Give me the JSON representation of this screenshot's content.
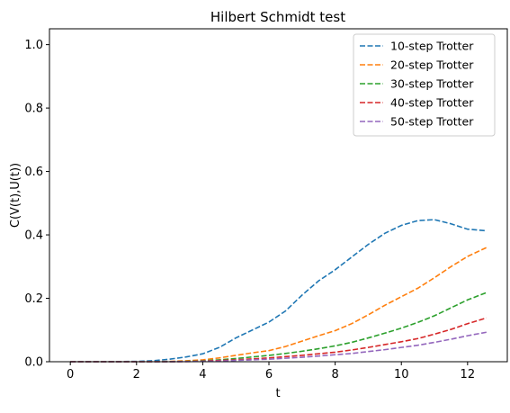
{
  "chart_data": {
    "type": "line",
    "title": "Hilbert Schmidt test",
    "xlabel": "t",
    "ylabel": "C(V(t),U(t))",
    "xlim": [
      -0.63,
      13.2
    ],
    "ylim": [
      0,
      1.05
    ],
    "xticks": [
      0,
      2,
      4,
      6,
      8,
      10,
      12
    ],
    "yticks": [
      0.0,
      0.2,
      0.4,
      0.6,
      0.8,
      1.0
    ],
    "xtick_labels": [
      "0",
      "2",
      "4",
      "6",
      "8",
      "10",
      "12"
    ],
    "ytick_labels": [
      "0.0",
      "0.2",
      "0.4",
      "0.6",
      "0.8",
      "1.0"
    ],
    "line_style": "dashed",
    "legend_position": "top-right",
    "grid": false,
    "x": [
      0,
      1,
      2,
      2.5,
      3,
      3.5,
      4,
      4.5,
      5,
      5.5,
      6,
      6.5,
      7,
      7.5,
      8,
      8.5,
      9,
      9.5,
      10,
      10.5,
      11,
      11.5,
      12,
      12.57
    ],
    "series": [
      {
        "name": "10-step Trotter",
        "color": "#1f77b4",
        "values": [
          0,
          0,
          0.001,
          0.003,
          0.008,
          0.015,
          0.025,
          0.045,
          0.075,
          0.1,
          0.125,
          0.16,
          0.21,
          0.255,
          0.29,
          0.33,
          0.37,
          0.405,
          0.43,
          0.445,
          0.448,
          0.435,
          0.418,
          0.413
        ]
      },
      {
        "name": "20-step Trotter",
        "color": "#ff7f0e",
        "values": [
          0,
          0,
          0,
          0.0005,
          0.001,
          0.003,
          0.006,
          0.012,
          0.02,
          0.028,
          0.035,
          0.048,
          0.065,
          0.082,
          0.098,
          0.12,
          0.148,
          0.178,
          0.205,
          0.232,
          0.265,
          0.3,
          0.332,
          0.36
        ]
      },
      {
        "name": "30-step Trotter",
        "color": "#2ca02c",
        "values": [
          0,
          0,
          0,
          0,
          0.0005,
          0.001,
          0.003,
          0.006,
          0.01,
          0.015,
          0.02,
          0.026,
          0.033,
          0.041,
          0.05,
          0.061,
          0.075,
          0.09,
          0.106,
          0.124,
          0.145,
          0.17,
          0.195,
          0.218
        ]
      },
      {
        "name": "40-step Trotter",
        "color": "#d62728",
        "values": [
          0,
          0,
          0,
          0,
          0,
          0.0005,
          0.002,
          0.004,
          0.006,
          0.009,
          0.012,
          0.016,
          0.02,
          0.025,
          0.03,
          0.037,
          0.045,
          0.054,
          0.063,
          0.073,
          0.087,
          0.102,
          0.12,
          0.138
        ]
      },
      {
        "name": "50-step Trotter",
        "color": "#9467bd",
        "values": [
          0,
          0,
          0,
          0,
          0,
          0.0005,
          0.001,
          0.002,
          0.004,
          0.006,
          0.008,
          0.011,
          0.014,
          0.018,
          0.022,
          0.026,
          0.032,
          0.038,
          0.045,
          0.052,
          0.061,
          0.071,
          0.082,
          0.093
        ]
      }
    ]
  }
}
